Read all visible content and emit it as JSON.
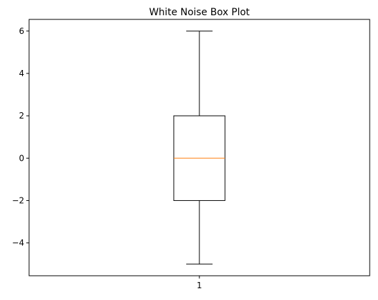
{
  "chart_data": {
    "type": "box",
    "title": "White Noise Box Plot",
    "xlabel": "",
    "ylabel": "",
    "categories": [
      "1"
    ],
    "box": {
      "whisker_low": -5,
      "q1": -2,
      "median": 0,
      "q3": 2,
      "whisker_high": 6
    },
    "ylim": [
      -5.55,
      6.55
    ],
    "yticks": [
      -4,
      -2,
      0,
      2,
      4,
      6
    ],
    "ytick_labels": [
      "−4",
      "−2",
      "0",
      "2",
      "4",
      "6"
    ],
    "grid": false,
    "colors": {
      "box": "#000000",
      "median": "#ff7f0e",
      "axes": "#000000"
    }
  }
}
